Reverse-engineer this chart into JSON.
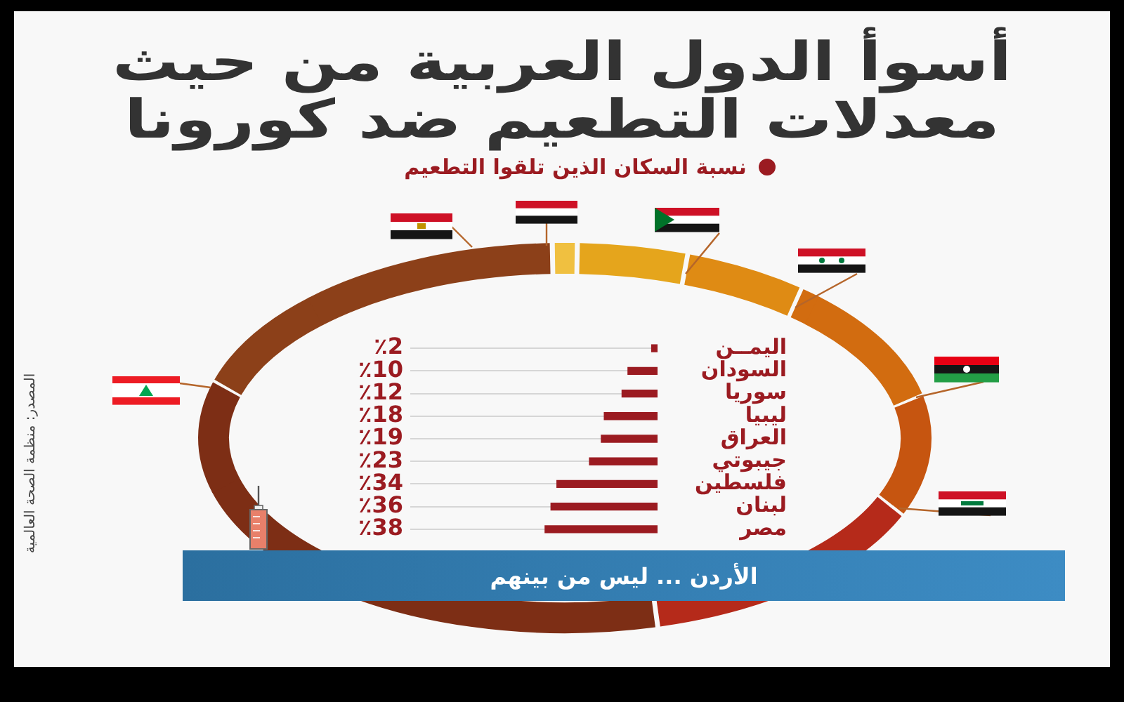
{
  "chart_data": {
    "type": "bar",
    "orientation": "horizontal",
    "title": "أسوأ الدول العربية من حيث\nمعدلات التطعيم ضد كورونا",
    "categories": [
      "اليمــن",
      "السودان",
      "سوريا",
      "ليبيا",
      "العراق",
      "جيبوتي",
      "فلسطين",
      "لبنان",
      "مصر"
    ],
    "series": [
      {
        "name": "نسبة السكان الذين تلقوا التطعيم",
        "color": "#9b1b21",
        "values": [
          2,
          10,
          12,
          18,
          19,
          23,
          34,
          36,
          38
        ],
        "value_labels": [
          "٪2",
          "٪10",
          "٪12",
          "٪18",
          "٪19",
          "٪23",
          "٪34",
          "٪36",
          "٪38"
        ]
      }
    ],
    "legend": "top",
    "grid": "y",
    "tick_labels": "y",
    "annotations": [
      "المصدر: منظمة الصحة العالمية",
      "الأردن ... ليس من بينهم"
    ]
  }
}
